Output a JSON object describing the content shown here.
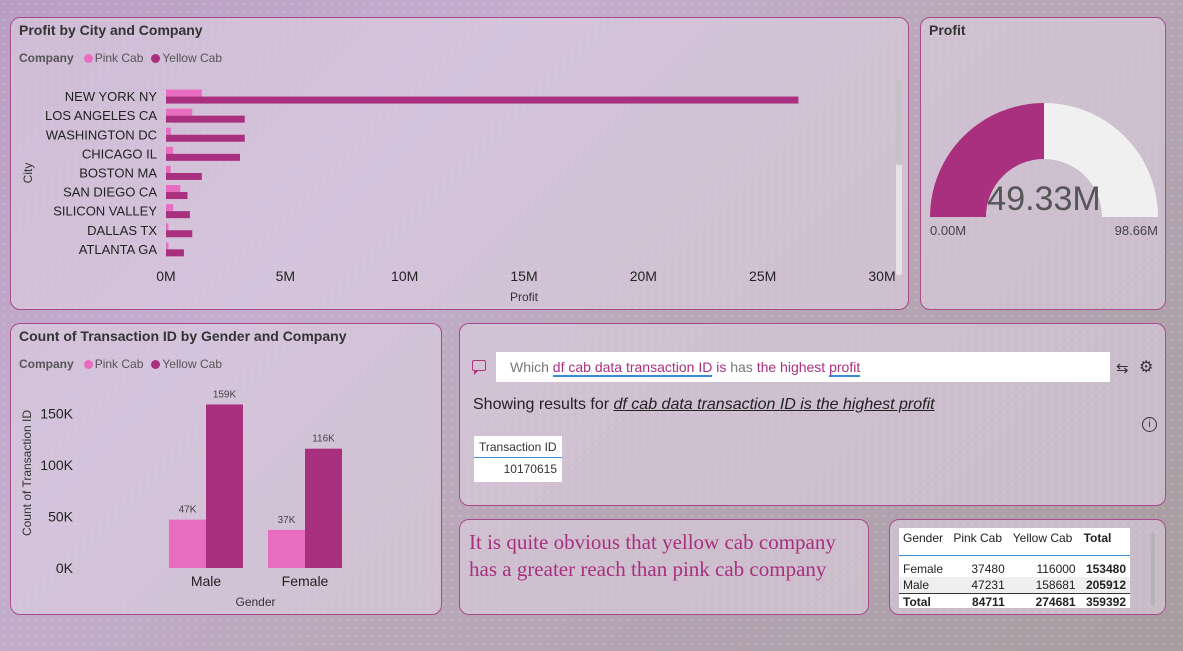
{
  "colors": {
    "pink": "#e86cbf",
    "yellow": "#a8307f",
    "gauge_bg": "#f1f0f0",
    "panel_border": "#a84a8c"
  },
  "city_chart": {
    "title": "Profit by City and Company",
    "legend_title": "Company",
    "xlabel": "Profit",
    "ylabel": "City",
    "chart_data": {
      "type": "bar",
      "orientation": "horizontal",
      "categories": [
        "NEW YORK NY",
        "LOS ANGELES CA",
        "WASHINGTON DC",
        "CHICAGO IL",
        "BOSTON MA",
        "SAN DIEGO CA",
        "SILICON VALLEY",
        "DALLAS TX",
        "ATLANTA GA"
      ],
      "series": [
        {
          "name": "Pink Cab",
          "values": [
            1.5,
            1.1,
            0.2,
            0.3,
            0.2,
            0.6,
            0.3,
            0.1,
            0.1
          ]
        },
        {
          "name": "Yellow Cab",
          "values": [
            26.5,
            3.3,
            3.3,
            3.1,
            1.5,
            0.9,
            1.0,
            1.1,
            0.75
          ]
        }
      ],
      "xlim": [
        0,
        30
      ],
      "tick_labels": [
        "0M",
        "5M",
        "10M",
        "15M",
        "20M",
        "25M",
        "30M"
      ],
      "tick_values": [
        0,
        5,
        10,
        15,
        20,
        25,
        30
      ]
    }
  },
  "gauge": {
    "title": "Profit",
    "value_label": "49.33M",
    "min_label": "0.00M",
    "max_label": "98.66M",
    "value": 49.33,
    "min": 0,
    "max": 98.66
  },
  "gender_chart": {
    "title": "Count of Transaction ID by Gender and Company",
    "legend_title": "Company",
    "xlabel": "Gender",
    "ylabel": "Count of Transaction ID",
    "chart_data": {
      "type": "bar",
      "categories": [
        "Male",
        "Female"
      ],
      "series": [
        {
          "name": "Pink Cab",
          "values": [
            47000,
            37000
          ],
          "labels": [
            "47K",
            "37K"
          ]
        },
        {
          "name": "Yellow Cab",
          "values": [
            159000,
            116000
          ],
          "labels": [
            "159K",
            "116K"
          ]
        }
      ],
      "ylim": [
        0,
        175000
      ],
      "tick_labels": [
        "0K",
        "50K",
        "100K",
        "150K"
      ],
      "tick_values": [
        0,
        50000,
        100000,
        150000
      ]
    }
  },
  "qa": {
    "query_words": [
      {
        "text": "Which ",
        "style": "plain"
      },
      {
        "text": "df cab data transaction ID",
        "style": "field"
      },
      {
        "text": " is ",
        "style": "kw"
      },
      {
        "text": "has",
        "style": "plain"
      },
      {
        "text": " the highest ",
        "style": "kw"
      },
      {
        "text": "profit",
        "style": "field"
      }
    ],
    "showing_prefix": "Showing results for ",
    "showing_query": "df cab data transaction ID is the highest profit",
    "result_header": "Transaction ID",
    "result_value": "10170615"
  },
  "note": {
    "text": "It is quite obvious that yellow cab company has a greater reach than pink cab company"
  },
  "matrix": {
    "headers": [
      "Gender",
      "Pink Cab",
      "Yellow Cab",
      "Total"
    ],
    "rows": [
      [
        "Female",
        "37480",
        "116000",
        "153480"
      ],
      [
        "Male",
        "47231",
        "158681",
        "205912"
      ]
    ],
    "total": [
      "Total",
      "84711",
      "274681",
      "359392"
    ]
  }
}
